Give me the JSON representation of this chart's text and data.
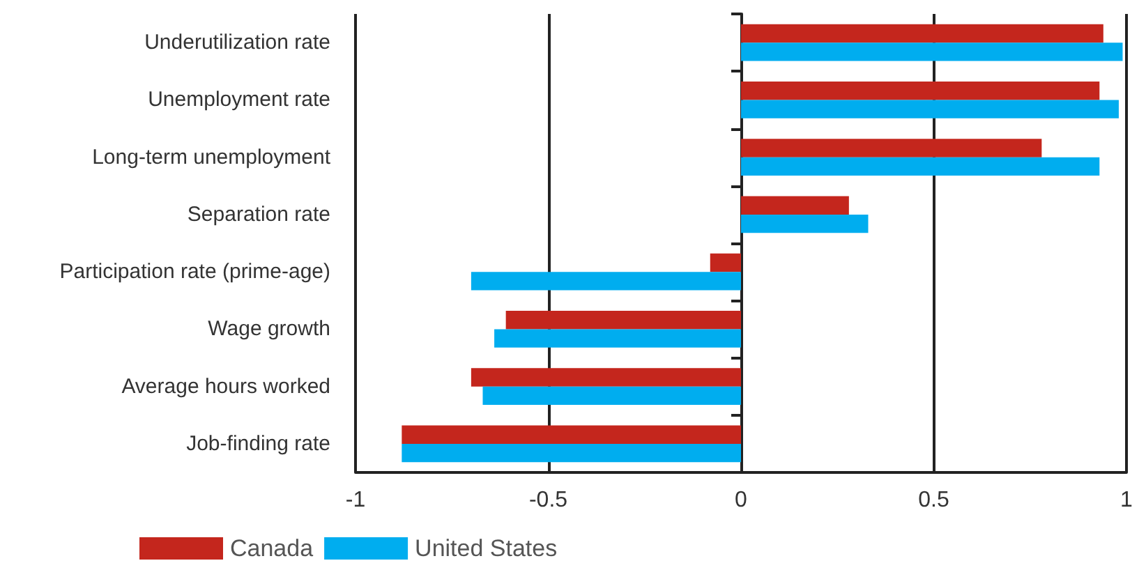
{
  "chart_data": {
    "type": "bar",
    "orientation": "horizontal",
    "categories": [
      "Underutilization rate",
      "Unemployment rate",
      "Long-term unemployment",
      "Separation rate",
      "Participation rate (prime-age)",
      "Wage growth",
      "Average hours worked",
      "Job-finding rate"
    ],
    "series": [
      {
        "name": "Canada",
        "color": "#c4261d",
        "values": [
          0.94,
          0.93,
          0.78,
          0.28,
          -0.08,
          -0.61,
          -0.7,
          -0.88
        ]
      },
      {
        "name": "United States",
        "color": "#00adef",
        "values": [
          0.99,
          0.98,
          0.93,
          0.33,
          -0.7,
          -0.64,
          -0.67,
          -0.88
        ]
      }
    ],
    "xlim": [
      -1,
      1
    ],
    "xticks": [
      -1,
      -0.5,
      0,
      0.5,
      1
    ],
    "grid": "x",
    "legend": "bottom left"
  }
}
